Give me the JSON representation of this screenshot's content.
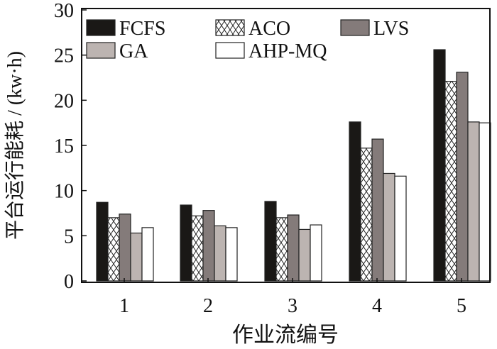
{
  "chart_data": {
    "type": "bar",
    "title": "",
    "xlabel": "作业流编号",
    "ylabel": "平台运行能耗 / (kw·h)",
    "ylim": [
      0,
      30
    ],
    "yticks": [
      0,
      5,
      10,
      15,
      20,
      25,
      30
    ],
    "categories": [
      "1",
      "2",
      "3",
      "4",
      "5"
    ],
    "grid": false,
    "legend_position": "top",
    "series": [
      {
        "name": "FCFS",
        "fill": "#1a1816",
        "pattern": "solid",
        "values": [
          8.7,
          8.4,
          8.8,
          17.6,
          25.6
        ]
      },
      {
        "name": "ACO",
        "fill": "#ffffff",
        "pattern": "crosshatch",
        "values": [
          7.0,
          7.2,
          7.0,
          14.7,
          22.1
        ]
      },
      {
        "name": "LVS",
        "fill": "#847b7a",
        "pattern": "solid",
        "values": [
          7.4,
          7.8,
          7.3,
          15.7,
          23.1
        ]
      },
      {
        "name": "GA",
        "fill": "#bcb4b1",
        "pattern": "solid",
        "values": [
          5.3,
          6.1,
          5.7,
          11.9,
          17.6
        ]
      },
      {
        "name": "AHP-MQ",
        "fill": "#ffffff",
        "pattern": "solid",
        "values": [
          5.9,
          5.9,
          6.2,
          11.6,
          17.5
        ]
      }
    ]
  }
}
